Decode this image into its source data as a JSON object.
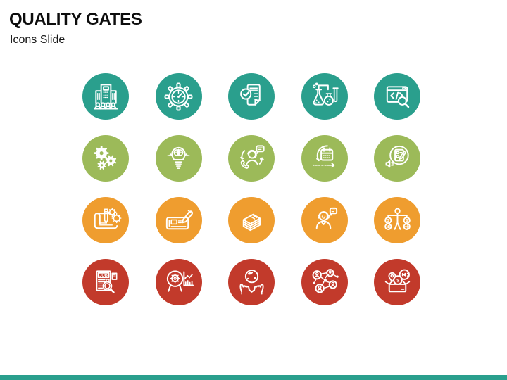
{
  "slide": {
    "title": "QUALITY GATES",
    "subtitle": "Icons Slide"
  },
  "colors": {
    "teal": "#2a9f8d",
    "green": "#9cba59",
    "orange": "#ef9d2f",
    "red": "#c23a2b",
    "footer_bar": "#2a9f8d",
    "title_text": "#0d0d0d"
  },
  "glyphs": {
    "job": "JOB",
    "dollar": "$"
  },
  "icon_grid": {
    "rows": [
      {
        "color_name": "teal",
        "color": "#2a9f8d",
        "icons": [
          {
            "name": "organization-building-audience-icon"
          },
          {
            "name": "performance-gauge-gear-icon"
          },
          {
            "name": "approved-document-checklist-icon"
          },
          {
            "name": "lab-testing-flasks-icon"
          },
          {
            "name": "code-review-search-icon"
          }
        ]
      },
      {
        "color_name": "green",
        "color": "#9cba59",
        "icons": [
          {
            "name": "process-gears-icon"
          },
          {
            "name": "creative-brain-bulb-icon"
          },
          {
            "name": "customer-support-call-icon"
          },
          {
            "name": "sprint-calendar-cycle-icon"
          },
          {
            "name": "survey-checklist-announce-icon"
          }
        ]
      },
      {
        "color_name": "orange",
        "color": "#ef9d2f",
        "icons": [
          {
            "name": "blueprint-design-gears-icon"
          },
          {
            "name": "stylus-device-editing-icon"
          },
          {
            "name": "money-stack-icon"
          },
          {
            "name": "support-agent-chat-icon"
          },
          {
            "name": "financial-balance-person-icon"
          }
        ]
      },
      {
        "color_name": "red",
        "color": "#c23a2b",
        "icons": [
          {
            "name": "job-search-icon",
            "label": "JOB"
          },
          {
            "name": "analytical-mind-chart-icon"
          },
          {
            "name": "hands-holding-globe-icon"
          },
          {
            "name": "people-network-icon"
          },
          {
            "name": "marketing-box-budget-icon"
          }
        ]
      }
    ]
  },
  "footer": {
    "bar_color": "#2a9f8d"
  }
}
